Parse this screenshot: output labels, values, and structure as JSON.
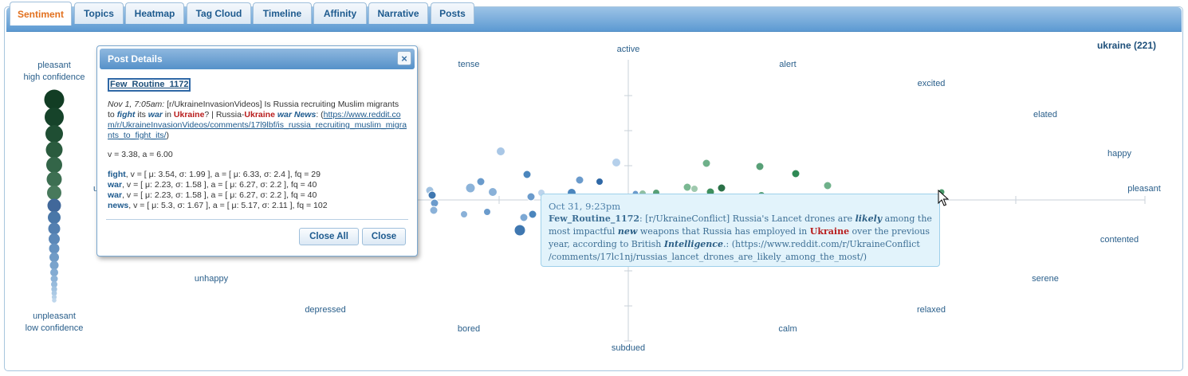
{
  "tabs": [
    {
      "label": "Sentiment",
      "active": true
    },
    {
      "label": "Topics"
    },
    {
      "label": "Heatmap"
    },
    {
      "label": "Tag Cloud"
    },
    {
      "label": "Timeline"
    },
    {
      "label": "Affinity"
    },
    {
      "label": "Narrative"
    },
    {
      "label": "Posts"
    }
  ],
  "topic": "ukraine (221)",
  "legend": {
    "top_line1": "pleasant",
    "top_line2": "high confidence",
    "bottom_line1": "unpleasant",
    "bottom_line2": "low confidence"
  },
  "emotions": {
    "active": "active",
    "subdued": "subdued",
    "pleasant": "pleasant",
    "tense": "tense",
    "alert": "alert",
    "excited": "excited",
    "elated": "elated",
    "happy": "happy",
    "contented": "contented",
    "serene": "serene",
    "relaxed": "relaxed",
    "calm": "calm",
    "bored": "bored",
    "depressed": "depressed",
    "unhappy": "unhappy",
    "partial_u": "u"
  },
  "dialog": {
    "title": "Post Details",
    "user": "Few_Routine_1172",
    "date": "Nov 1, 7:05am:",
    "text_a": " [r/UkraineInvasionVideos] Is Russia recruiting Muslim migrants to ",
    "kw_fight": "fight",
    "text_b": " its ",
    "kw_war": "war",
    "text_c": " in ",
    "kw_ukraine": "Ukraine",
    "text_d": "? | Russia-",
    "kw_ukraine2": "Ukraine",
    "text_e": " ",
    "kw_war_news": "war News",
    "text_f": ": (",
    "link": "https://www.reddit.com/r/UkraineInvasionVideos/comments/17l9lbf/is_russia_recruiting_muslim_migrants_to_fight_its/",
    "text_g": ")",
    "va": "v = 3.38, a = 6.00",
    "terms": [
      {
        "name": "fight",
        "stats": ", v = [ μ: 3.54, σ: 1.99 ], a = [ μ: 6.33, σ: 2.4 ], fq = 29"
      },
      {
        "name": "war",
        "stats": ", v = [ μ: 2.23, σ: 1.58 ], a = [ μ: 6.27, σ: 2.2 ], fq = 40"
      },
      {
        "name": "war",
        "stats": ", v = [ μ: 2.23, σ: 1.58 ], a = [ μ: 6.27, σ: 2.2 ], fq = 40"
      },
      {
        "name": "news",
        "stats": ", v = [ μ: 5.3, σ: 1.67 ], a = [ μ: 5.17, σ: 2.11 ], fq = 102"
      }
    ],
    "close_all": "Close All",
    "close": "Close",
    "close_icon": "×"
  },
  "tooltip": {
    "date": "Oct 31, 9:23pm",
    "user": "Few_Routine_1172",
    "t1": ": [r/UkraineConflict] Russia's Lancet drones are ",
    "kw_likely": "likely",
    "t2": " among the most impactful ",
    "kw_new": "new",
    "t3": " weapons that Russia has employed in ",
    "kw_ukraine": "Ukraine",
    "t4": " over the previous year, according to British ",
    "kw_intel": "Intelligence",
    "t5": ".: (https://www.reddit.com/r/UkraineConflict /comments/17lc1nj/russias_lancet_drones_are_likely_among_the_most/)"
  },
  "colors": {
    "blue": "#4b86bd",
    "green": "#3f8f5f",
    "dark_green": "#13422a",
    "accent": "#e2701e"
  }
}
